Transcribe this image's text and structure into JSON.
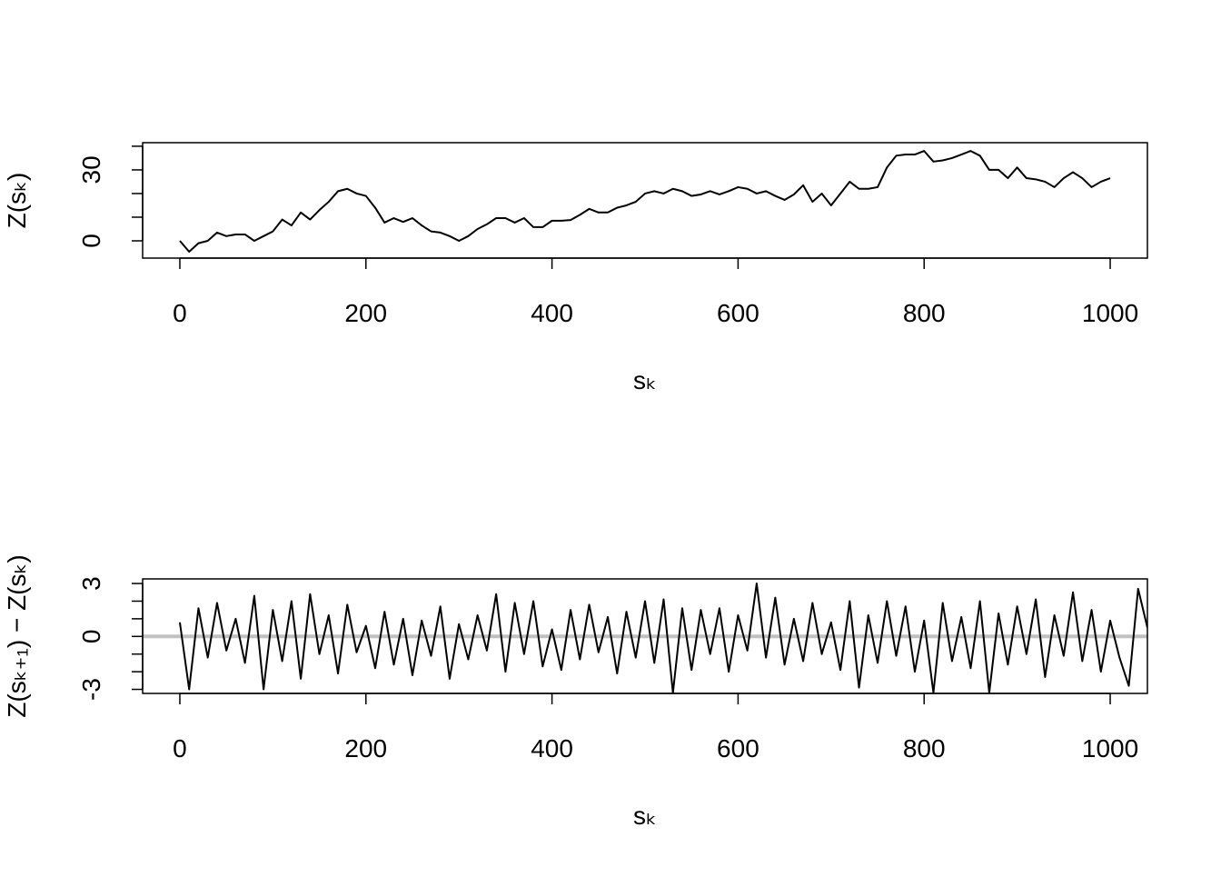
{
  "chart_data": [
    {
      "type": "line",
      "xlabel": "sₖ",
      "ylabel": "Z(sₖ)",
      "x": [
        0,
        10,
        20,
        30,
        40,
        50,
        60,
        70,
        80,
        90,
        100,
        110,
        120,
        130,
        140,
        150,
        160,
        170,
        180,
        190,
        200,
        210,
        220,
        230,
        240,
        250,
        260,
        270,
        280,
        290,
        300,
        310,
        320,
        330,
        340,
        350,
        360,
        370,
        380,
        390,
        400,
        410,
        420,
        430,
        440,
        450,
        460,
        470,
        480,
        490,
        500,
        510,
        520,
        530,
        540,
        550,
        560,
        570,
        580,
        590,
        600,
        610,
        620,
        630,
        640,
        650,
        660,
        670,
        680,
        690,
        700,
        710,
        720,
        730,
        740,
        750,
        760,
        770,
        780,
        790,
        800,
        810,
        820,
        830,
        840,
        850,
        860,
        870,
        880,
        890,
        900,
        910,
        920,
        930,
        940,
        950,
        960,
        970,
        980,
        990,
        1000
      ],
      "series": [
        {
          "color": "#000000",
          "values": [
            0,
            -4.6,
            -1,
            0,
            3.5,
            2,
            2.7,
            2.7,
            0,
            2,
            4,
            9,
            6.5,
            12,
            9,
            13,
            16.5,
            21,
            22,
            20,
            19,
            14,
            7.7,
            9.6,
            8,
            9.6,
            6.5,
            4,
            3.5,
            2,
            0,
            2,
            5,
            7,
            9.6,
            9.6,
            7.7,
            9.6,
            5.8,
            5.8,
            8.5,
            8.5,
            8.8,
            11,
            13.5,
            12,
            12,
            14,
            15,
            16.5,
            20,
            21,
            20,
            22,
            21,
            19,
            19.6,
            21,
            19.6,
            21,
            22.7,
            22,
            20,
            21,
            19,
            17.3,
            19.6,
            23.5,
            16.5,
            20,
            15,
            20,
            25,
            22,
            22,
            22.7,
            31,
            36,
            36.5,
            36.5,
            38,
            33.5,
            34,
            35,
            36.5,
            38,
            36,
            30,
            30,
            26.5,
            31,
            26.5,
            26,
            25,
            22.7,
            26.5,
            29,
            26.5,
            22.7,
            25,
            26.5
          ]
        }
      ],
      "xlim": [
        -40,
        1040
      ],
      "ylim": [
        -7.3,
        41.5
      ],
      "xticks": [
        0,
        200,
        400,
        600,
        800,
        1000
      ],
      "yticks": [
        0,
        30
      ],
      "yminor": [
        10,
        20,
        40
      ]
    },
    {
      "type": "line",
      "xlabel": "sₖ",
      "ylabel": "Z(sₖ₊₁) − Z(sₖ)",
      "x": [
        0,
        10,
        20,
        30,
        40,
        50,
        60,
        70,
        80,
        90,
        100,
        110,
        120,
        130,
        140,
        150,
        160,
        170,
        180,
        190,
        200,
        210,
        220,
        230,
        240,
        250,
        260,
        270,
        280,
        290,
        300,
        310,
        320,
        330,
        340,
        350,
        360,
        370,
        380,
        390,
        400,
        410,
        420,
        430,
        440,
        450,
        460,
        470,
        480,
        490,
        500,
        510,
        520,
        530,
        540,
        550,
        560,
        570,
        580,
        590,
        600,
        610,
        620,
        630,
        640,
        650,
        660,
        670,
        680,
        690,
        700,
        710,
        720,
        730,
        740,
        750,
        760,
        770,
        780,
        790,
        800,
        810,
        820,
        830,
        840,
        850,
        860,
        870,
        880,
        890,
        900,
        910,
        920,
        930,
        940,
        950,
        960,
        970,
        980,
        990,
        1000,
        1010,
        1020,
        1030,
        1040
      ],
      "series": [
        {
          "color": "#000000",
          "values": [
            0.8,
            -3.0,
            1.6,
            -1.2,
            1.9,
            -0.8,
            1.0,
            -1.5,
            2.3,
            -3.0,
            1.5,
            -1.4,
            2.0,
            -2.4,
            2.4,
            -1.0,
            1.2,
            -2.1,
            1.8,
            -0.9,
            0.6,
            -1.8,
            1.4,
            -1.6,
            1.0,
            -2.2,
            0.9,
            -1.1,
            1.7,
            -2.4,
            0.7,
            -1.3,
            1.2,
            -0.8,
            2.4,
            -2.0,
            1.9,
            -1.0,
            2.0,
            -1.7,
            0.4,
            -1.9,
            1.5,
            -1.3,
            1.8,
            -0.9,
            1.1,
            -2.1,
            1.4,
            -1.2,
            2.0,
            -1.5,
            2.1,
            -3.2,
            1.6,
            -1.9,
            1.5,
            -1.0,
            1.6,
            -2.0,
            1.2,
            -0.8,
            3.0,
            -1.2,
            2.2,
            -1.6,
            1.0,
            -1.4,
            1.9,
            -1.0,
            0.8,
            -1.9,
            2.0,
            -2.9,
            1.2,
            -1.5,
            2.0,
            -1.1,
            1.7,
            -2.0,
            0.9,
            -3.2,
            1.9,
            -1.4,
            1.1,
            -1.8,
            2.0,
            -3.2,
            1.3,
            -1.6,
            1.7,
            -1.0,
            2.1,
            -2.3,
            1.2,
            -1.1,
            2.5,
            -1.4,
            1.5,
            -2.0,
            0.9,
            -1.2,
            -2.8,
            2.7,
            0.5
          ]
        }
      ],
      "hline": 0,
      "hline_color": "#c0c0c0",
      "xlim": [
        -40,
        1040
      ],
      "ylim": [
        -3.23,
        3.26
      ],
      "xticks": [
        0,
        200,
        400,
        600,
        800,
        1000
      ],
      "yticks": [
        -3,
        0,
        3
      ],
      "yminor": [
        -2,
        -1,
        1,
        2
      ]
    }
  ]
}
